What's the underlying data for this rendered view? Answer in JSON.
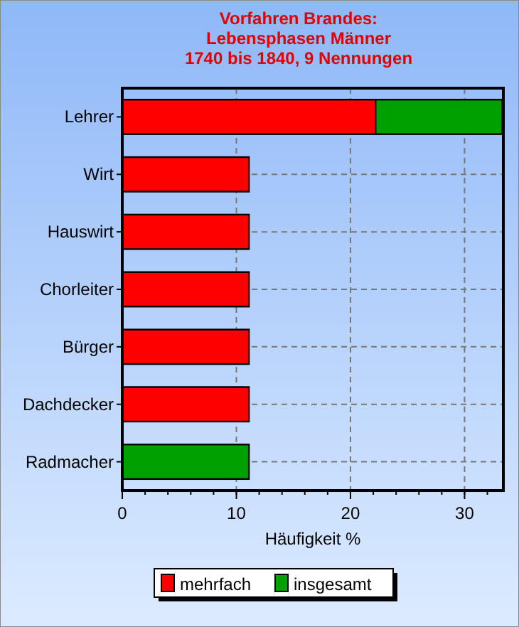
{
  "chart_data": {
    "type": "bar",
    "orientation": "horizontal",
    "stacked": true,
    "title": "Vorfahren Brandes:\nLebensphasen Männer\n1740 bis 1840, 9 Nennungen",
    "xlabel": "Häufigkeit %",
    "categories": [
      "Lehrer",
      "Wirt",
      "Hauswirt",
      "Chorleiter",
      "Bürger",
      "Dachdecker",
      "Radmacher"
    ],
    "series": [
      {
        "name": "mehrfach",
        "color": "#ff0000",
        "values": [
          22.2,
          11.1,
          11.1,
          11.1,
          11.1,
          11.1,
          null
        ]
      },
      {
        "name": "insgesamt",
        "color": "#00a000",
        "values": [
          11.1,
          null,
          null,
          null,
          null,
          null,
          11.1
        ]
      }
    ],
    "xlim": [
      0,
      33.4
    ],
    "xticks": [
      0,
      10,
      20,
      30
    ],
    "grid": true,
    "legend": "bottom"
  }
}
